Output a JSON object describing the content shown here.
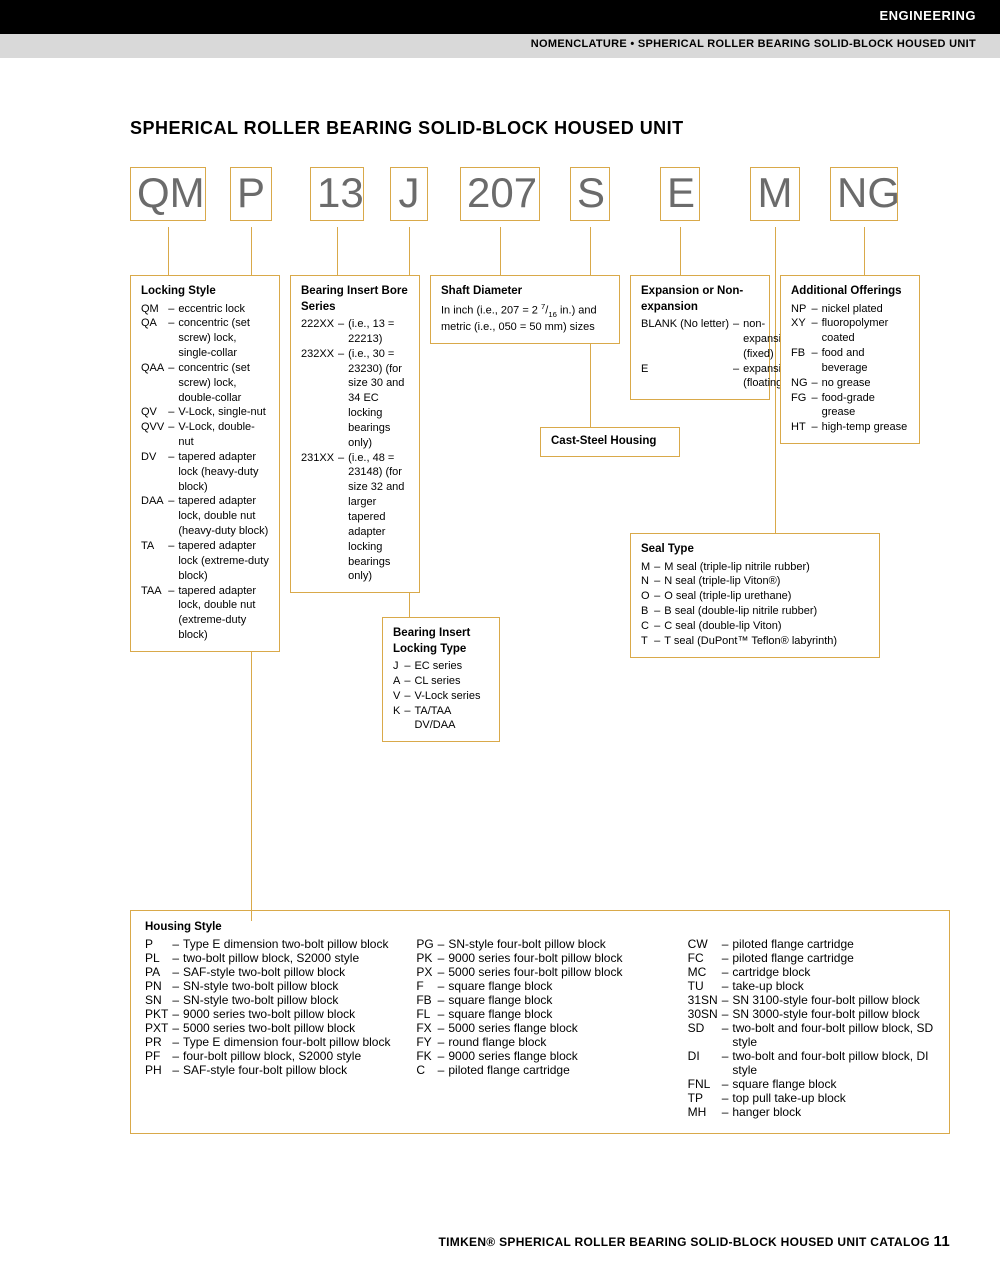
{
  "header": {
    "section": "ENGINEERING",
    "breadcrumb": "NOMENCLATURE • SPHERICAL ROLLER BEARING SOLID-BLOCK HOUSED UNIT"
  },
  "title": "SPHERICAL ROLLER BEARING SOLID-BLOCK HOUSED UNIT",
  "codes": [
    "QM",
    "P",
    "13",
    "J",
    "207",
    "S",
    "E",
    "M",
    "NG"
  ],
  "boxes": {
    "locking_style": {
      "title": "Locking Style",
      "items": [
        {
          "c": "QM",
          "d": "eccentric lock"
        },
        {
          "c": "QA",
          "d": "concentric (set screw) lock, single-collar"
        },
        {
          "c": "QAA",
          "d": "concentric (set screw) lock, double-collar"
        },
        {
          "c": "QV",
          "d": "V-Lock, single-nut"
        },
        {
          "c": "QVV",
          "d": "V-Lock, double-nut"
        },
        {
          "c": "DV",
          "d": "tapered adapter lock (heavy-duty block)"
        },
        {
          "c": "DAA",
          "d": "tapered adapter lock, double nut (heavy-duty block)"
        },
        {
          "c": "TA",
          "d": "tapered adapter lock (extreme-duty block)"
        },
        {
          "c": "TAA",
          "d": "tapered adapter lock, double nut (extreme-duty block)"
        }
      ]
    },
    "bore_series": {
      "title": "Bearing Insert Bore Series",
      "items": [
        {
          "c": "222XX",
          "d": "(i.e., 13 = 22213)"
        },
        {
          "c": "232XX",
          "d": "(i.e., 30 = 23230) (for size 30 and 34 EC locking bearings only)"
        },
        {
          "c": "231XX",
          "d": "(i.e., 48 = 23148) (for size 32 and larger tapered adapter locking bearings only)"
        }
      ]
    },
    "locking_type": {
      "title": "Bearing Insert Locking Type",
      "items": [
        {
          "c": "J",
          "d": "EC series"
        },
        {
          "c": "A",
          "d": "CL series"
        },
        {
          "c": "V",
          "d": "V-Lock series"
        },
        {
          "c": "K",
          "d": "TA/TAA DV/DAA"
        }
      ]
    },
    "shaft": {
      "title": "Shaft Diameter",
      "text": "In inch (i.e., 207 = 2 7/16 in.) and metric (i.e., 050 = 50 mm) sizes"
    },
    "cast": {
      "title": "Cast-Steel Housing"
    },
    "expansion": {
      "title": "Expansion or Non-expansion",
      "items": [
        {
          "c": "BLANK (No letter)",
          "d": "non-expansion (fixed)"
        },
        {
          "c": "E",
          "d": "expansion (floating)"
        }
      ]
    },
    "seal": {
      "title": "Seal Type",
      "items": [
        {
          "c": "M",
          "d": "M seal (triple-lip nitrile rubber)"
        },
        {
          "c": "N",
          "d": "N seal (triple-lip Viton®)"
        },
        {
          "c": "O",
          "d": "O seal (triple-lip urethane)"
        },
        {
          "c": "B",
          "d": "B seal (double-lip nitrile rubber)"
        },
        {
          "c": "C",
          "d": "C seal (double-lip Viton)"
        },
        {
          "c": "T",
          "d": "T seal (DuPont™ Teflon® labyrinth)"
        }
      ]
    },
    "additional": {
      "title": "Additional Offerings",
      "items": [
        {
          "c": "NP",
          "d": "nickel plated"
        },
        {
          "c": "XY",
          "d": "fluoropolymer coated"
        },
        {
          "c": "FB",
          "d": "food and beverage"
        },
        {
          "c": "NG",
          "d": "no grease"
        },
        {
          "c": "FG",
          "d": "food-grade grease"
        },
        {
          "c": "HT",
          "d": "high-temp grease"
        }
      ]
    }
  },
  "housing": {
    "title": "Housing Style",
    "col1": [
      {
        "c": "P",
        "d": "Type E dimension two-bolt pillow block"
      },
      {
        "c": "PL",
        "d": "two-bolt pillow block, S2000 style"
      },
      {
        "c": "PA",
        "d": "SAF-style two-bolt pillow block"
      },
      {
        "c": "PN",
        "d": "SN-style two-bolt pillow block"
      },
      {
        "c": "SN",
        "d": "SN-style two-bolt pillow block"
      },
      {
        "c": "PKT",
        "d": "9000 series two-bolt pillow block"
      },
      {
        "c": "PXT",
        "d": "5000 series two-bolt pillow block"
      },
      {
        "c": "PR",
        "d": "Type E dimension four-bolt pillow block"
      },
      {
        "c": "PF",
        "d": "four-bolt pillow block, S2000 style"
      },
      {
        "c": "PH",
        "d": "SAF-style four-bolt pillow block"
      }
    ],
    "col2": [
      {
        "c": "PG",
        "d": "SN-style four-bolt pillow block"
      },
      {
        "c": "PK",
        "d": "9000 series four-bolt pillow block"
      },
      {
        "c": "PX",
        "d": "5000 series four-bolt pillow block"
      },
      {
        "c": "F",
        "d": "square flange block"
      },
      {
        "c": "FB",
        "d": "square flange block"
      },
      {
        "c": "FL",
        "d": "square flange block"
      },
      {
        "c": "FX",
        "d": "5000 series flange block"
      },
      {
        "c": "FY",
        "d": "round flange block"
      },
      {
        "c": "FK",
        "d": "9000 series flange block"
      },
      {
        "c": "C",
        "d": "piloted flange cartridge"
      }
    ],
    "col3": [
      {
        "c": "CW",
        "d": "piloted flange cartridge"
      },
      {
        "c": "FC",
        "d": "piloted flange cartridge"
      },
      {
        "c": "MC",
        "d": "cartridge block"
      },
      {
        "c": "TU",
        "d": "take-up block"
      },
      {
        "c": "31SN",
        "d": "SN 3100-style four-bolt pillow block"
      },
      {
        "c": "30SN",
        "d": "SN 3000-style four-bolt pillow block"
      },
      {
        "c": "SD",
        "d": "two-bolt and four-bolt pillow block, SD style"
      },
      {
        "c": "DI",
        "d": "two-bolt and four-bolt pillow block, DI style"
      },
      {
        "c": "FNL",
        "d": "square flange block"
      },
      {
        "c": "TP",
        "d": "top pull take-up block"
      },
      {
        "c": "MH",
        "d": "hanger block"
      }
    ]
  },
  "footer": {
    "text": "TIMKEN® SPHERICAL ROLLER BEARING SOLID-BLOCK HOUSED UNIT CATALOG",
    "page": "11"
  },
  "layout": {
    "code_x": [
      0,
      100,
      180,
      260,
      330,
      440,
      530,
      620,
      700
    ],
    "code_w": [
      76,
      42,
      54,
      38,
      80,
      40,
      40,
      50,
      68
    ]
  }
}
